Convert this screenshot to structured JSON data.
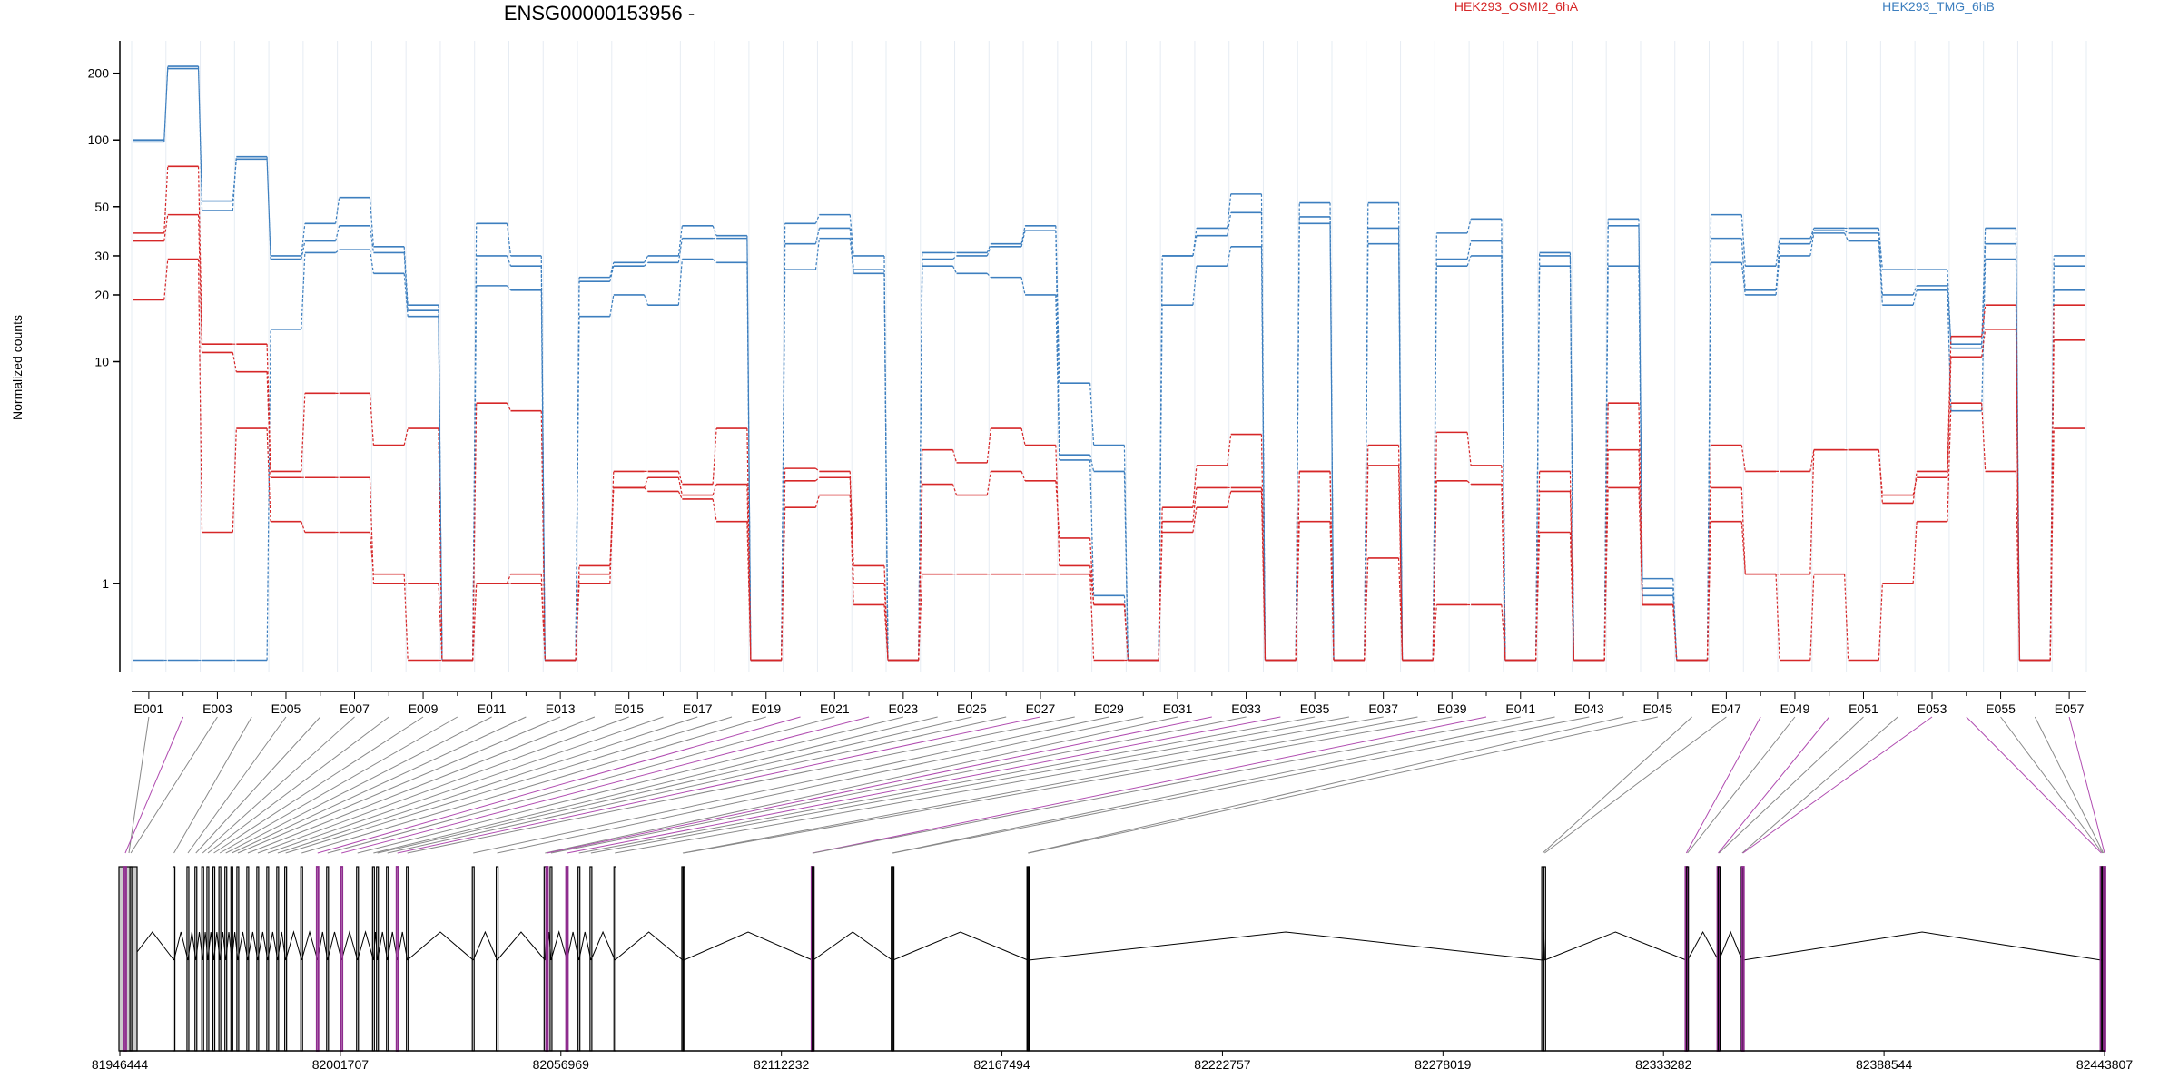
{
  "chart_data": {
    "type": "line",
    "title": "ENSG00000153956 -",
    "ylabel": "Normalized counts",
    "y_scale": "log",
    "ylim": [
      0.4,
      280
    ],
    "y_ticks": [
      1,
      10,
      20,
      30,
      50,
      100,
      200
    ],
    "legend": {
      "placement": "top",
      "entries": [
        {
          "name": "HEK293_OSMI2_6hA",
          "color": "#d62728"
        },
        {
          "name": "HEK293_TMG_6hB",
          "color": "#3d7fbf"
        }
      ]
    },
    "exon_labels": [
      "E001",
      "E003",
      "E005",
      "E007",
      "E009",
      "E011",
      "E013",
      "E015",
      "E017",
      "E019",
      "E021",
      "E023",
      "E025",
      "E027",
      "E029",
      "E031",
      "E033",
      "E035",
      "E037",
      "E039",
      "E041",
      "E043",
      "E045",
      "E047",
      "E049",
      "E051",
      "E053",
      "E055",
      "E057"
    ],
    "exon_count": 57,
    "genomic_axis": {
      "ticks": [
        "81946444",
        "82001707",
        "82056969",
        "82112232",
        "82167494",
        "82222757",
        "82278019",
        "82333282",
        "82388544",
        "82443807"
      ],
      "range": [
        81946444,
        82443807
      ]
    },
    "highlighted_exons": [
      2,
      20,
      22,
      27,
      32,
      34,
      40,
      48,
      50,
      53,
      54,
      57
    ],
    "exon_positions": [
      81946444,
      81947800,
      81949200,
      81960000,
      81963500,
      81965500,
      81967200,
      81968500,
      81970000,
      81971500,
      81973000,
      81974500,
      81976000,
      81978500,
      81981000,
      81983500,
      81986000,
      81988000,
      81992000,
      81996000,
      81998500,
      82002000,
      82006000,
      82010000,
      82011000,
      82013500,
      82016000,
      82018500,
      82035000,
      82041000,
      82053000,
      82053500,
      82054500,
      82058500,
      82061500,
      82064500,
      82070500,
      82087500,
      82087800,
      82120000,
      82120200,
      82140000,
      82140200,
      82174000,
      82174200,
      82303000,
      82303500,
      82339000,
      82339300,
      82347000,
      82347200,
      82353000,
      82353200,
      82443000,
      82443300,
      82443500,
      82443807
    ],
    "series": [
      {
        "name": "HEK293_TMG_6hB",
        "group": "TMG",
        "values": [
          100,
          210,
          53,
          82,
          30,
          42,
          55,
          33,
          18,
          0.45,
          42,
          30,
          0.45,
          24,
          28,
          30,
          41,
          37,
          0.45,
          42,
          46,
          30,
          0.45,
          31,
          31,
          34,
          41,
          8,
          4.2,
          0.45,
          30,
          40,
          57,
          0.45,
          52,
          0.45,
          52,
          0.45,
          38,
          44,
          0.45,
          31,
          0.45,
          44,
          1.05,
          0.45,
          46,
          27,
          36,
          40,
          40,
          26,
          26,
          11.5,
          40,
          0.45,
          30
        ]
      },
      {
        "name": "HEK293_TMG_6hB",
        "group": "TMG",
        "values": [
          98,
          215,
          48,
          84,
          29,
          35,
          41,
          31,
          17,
          0.45,
          30,
          27,
          0.45,
          23,
          27,
          28,
          36,
          36,
          0.45,
          34,
          40,
          26,
          0.45,
          29,
          30,
          33,
          39,
          3.8,
          3.2,
          0.45,
          30,
          37,
          47,
          0.45,
          45,
          0.45,
          40,
          0.45,
          29,
          35,
          0.45,
          30,
          0.45,
          41,
          0.95,
          0.45,
          36,
          21,
          34,
          39,
          38,
          20,
          22,
          12,
          34,
          0.45,
          27
        ]
      },
      {
        "name": "HEK293_TMG_6hB",
        "group": "TMG",
        "values": [
          0.45,
          0.45,
          0.45,
          0.45,
          14,
          31,
          32,
          25,
          16,
          0.45,
          22,
          21,
          0.45,
          16,
          20,
          18,
          29,
          28,
          0.45,
          26,
          36,
          25,
          0.45,
          27,
          25,
          24,
          20,
          3.6,
          0.88,
          0.45,
          18,
          27,
          33,
          0.45,
          42,
          0.45,
          34,
          0.45,
          27,
          30,
          0.45,
          27,
          0.45,
          27,
          0.88,
          0.45,
          28,
          20,
          30,
          38,
          35,
          18,
          21,
          6,
          29,
          0.45,
          21
        ]
      },
      {
        "name": "HEK293_OSMI2_6hA",
        "group": "OSMI2",
        "values": [
          38,
          76,
          12,
          12,
          3.2,
          7.2,
          7.2,
          4.2,
          5,
          0.45,
          6.5,
          6,
          0.45,
          1.1,
          3.2,
          3.2,
          2.8,
          5,
          0.45,
          3.3,
          3.2,
          1.2,
          0.45,
          4,
          3.5,
          5,
          4.2,
          1.2,
          0.8,
          0.45,
          2.2,
          3.4,
          4.7,
          0.45,
          3.2,
          0.45,
          4.2,
          0.45,
          4.8,
          3.4,
          0.45,
          3.2,
          0.45,
          6.5,
          0.8,
          0.45,
          4.2,
          3.2,
          3.2,
          4,
          4,
          2.3,
          3.2,
          13,
          18,
          0.45,
          18
        ]
      },
      {
        "name": "HEK293_OSMI2_6hA",
        "group": "OSMI2",
        "values": [
          35,
          46,
          11,
          9,
          3,
          3,
          3,
          1,
          1,
          0.45,
          1,
          1,
          0.45,
          1,
          2.7,
          3,
          2.5,
          2.8,
          0.45,
          2.9,
          3,
          1,
          0.45,
          2.8,
          2.5,
          3.2,
          2.9,
          1.6,
          0.8,
          0.45,
          1.9,
          2.7,
          2.7,
          0.45,
          3.2,
          0.45,
          3.4,
          0.45,
          2.9,
          2.8,
          0.45,
          2.6,
          0.45,
          4,
          0.8,
          0.45,
          2.7,
          1.1,
          1.1,
          4,
          4,
          2.5,
          3,
          10.5,
          14,
          0.45,
          12.5
        ]
      },
      {
        "name": "HEK293_OSMI2_6hA",
        "group": "OSMI2",
        "values": [
          19,
          29,
          1.7,
          5,
          1.9,
          1.7,
          1.7,
          1.1,
          0.45,
          0.45,
          1.0,
          1.1,
          0.45,
          1.2,
          2.7,
          2.6,
          2.4,
          1.9,
          0.45,
          2.2,
          2.5,
          0.8,
          0.45,
          1.1,
          1.1,
          1.1,
          1.1,
          1.1,
          0.45,
          0.45,
          1.7,
          2.2,
          2.6,
          0.45,
          1.9,
          0.45,
          1.3,
          0.45,
          0.8,
          0.8,
          0.45,
          1.7,
          0.45,
          2.7,
          0.8,
          0.45,
          1.9,
          1.1,
          0.45,
          1.1,
          0.45,
          1.0,
          1.9,
          6.5,
          3.2,
          0.45,
          5
        ]
      }
    ]
  }
}
